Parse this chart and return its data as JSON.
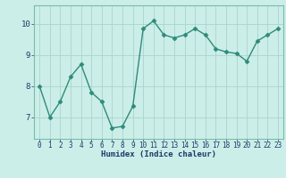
{
  "x": [
    0,
    1,
    2,
    3,
    4,
    5,
    6,
    7,
    8,
    9,
    10,
    11,
    12,
    13,
    14,
    15,
    16,
    17,
    18,
    19,
    20,
    21,
    22,
    23
  ],
  "y": [
    8.0,
    7.0,
    7.5,
    8.3,
    8.7,
    7.8,
    7.5,
    6.65,
    6.7,
    7.35,
    9.85,
    10.1,
    9.65,
    9.55,
    9.65,
    9.85,
    9.65,
    9.2,
    9.1,
    9.05,
    8.8,
    9.45,
    9.65,
    9.85
  ],
  "line_color": "#2e8b7a",
  "marker": "D",
  "marker_size": 2.5,
  "bg_color": "#cceee8",
  "grid_color": "#aad4ce",
  "xlabel": "Humidex (Indice chaleur)",
  "xlabel_color": "#1a3a6a",
  "tick_color": "#1a3a6a",
  "axis_color": "#7abaaa",
  "ylim": [
    6.3,
    10.6
  ],
  "xlim": [
    -0.5,
    23.5
  ],
  "yticks": [
    7,
    8,
    9,
    10
  ],
  "xticks": [
    0,
    1,
    2,
    3,
    4,
    5,
    6,
    7,
    8,
    9,
    10,
    11,
    12,
    13,
    14,
    15,
    16,
    17,
    18,
    19,
    20,
    21,
    22,
    23
  ],
  "figsize": [
    3.2,
    2.0
  ],
  "dpi": 100
}
